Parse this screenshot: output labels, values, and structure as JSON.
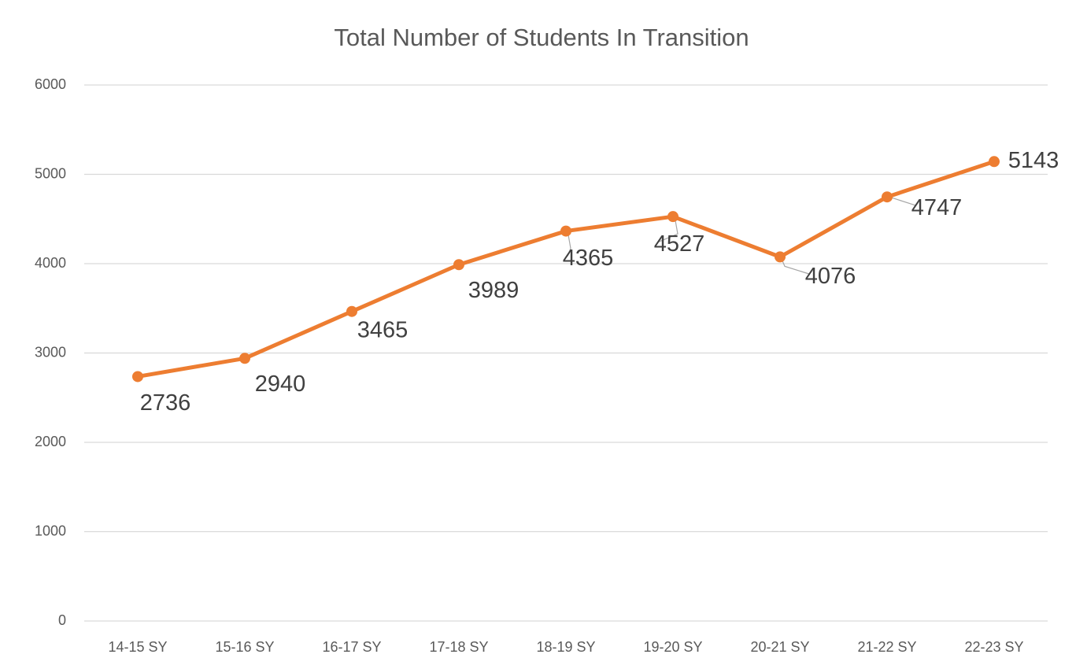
{
  "chart_data": {
    "type": "line",
    "title": "Total Number of Students In Transition",
    "categories": [
      "14-15 SY",
      "15-16 SY",
      "16-17 SY",
      "17-18 SY",
      "18-19 SY",
      "19-20 SY",
      "20-21 SY",
      "21-22 SY",
      "22-23 SY"
    ],
    "series": [
      {
        "name": "Total Number of Students In Transition",
        "color": "#ed7d31",
        "values": [
          2736,
          2940,
          3465,
          3989,
          4365,
          4527,
          4076,
          4747,
          5143
        ]
      }
    ],
    "ylim": [
      0,
      6000
    ],
    "yticks": [
      0,
      1000,
      2000,
      3000,
      4000,
      5000,
      6000
    ],
    "grid": true
  }
}
